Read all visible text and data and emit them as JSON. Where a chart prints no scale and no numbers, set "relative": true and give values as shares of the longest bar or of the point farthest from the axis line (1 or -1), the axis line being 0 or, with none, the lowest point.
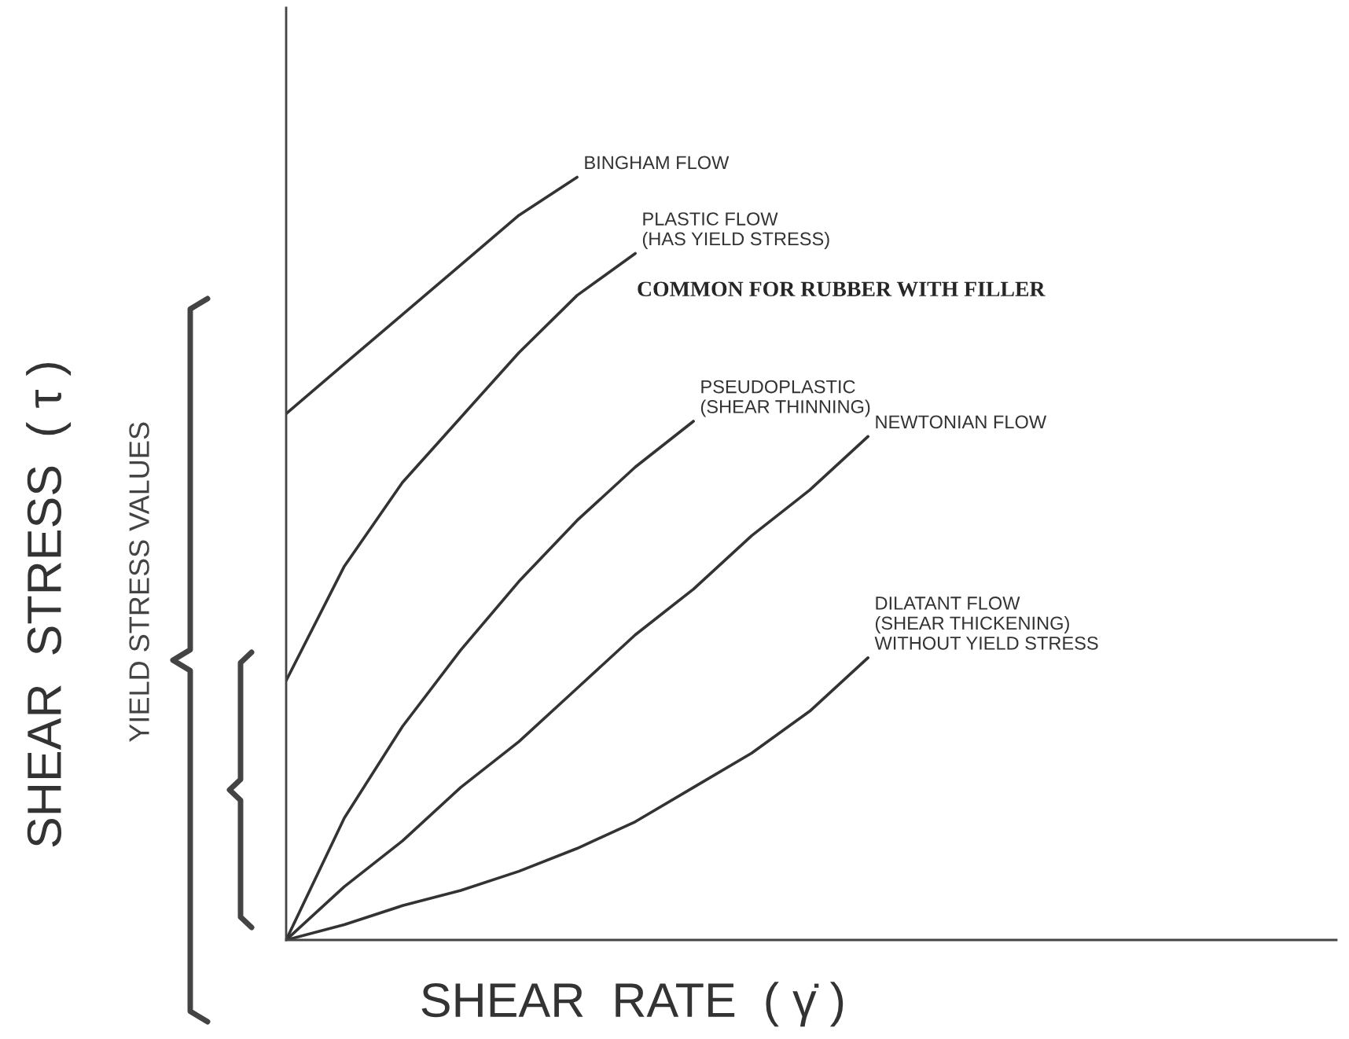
{
  "chart_data": {
    "type": "line",
    "relative": true,
    "legend": false,
    "marker": "none",
    "line_style": "solid",
    "xlabel": "SHEAR  RATE  ( γ̇ )",
    "ylabel": "SHEAR  STRESS  ( τ )",
    "categories": [
      null,
      null,
      null,
      null,
      null,
      null,
      null,
      null,
      null,
      null,
      null
    ],
    "series": [
      {
        "color": "#333333",
        "values": [
          0.69,
          0.755,
          0.82,
          0.885,
          0.95,
          1.0,
          null,
          null,
          null,
          null,
          null
        ]
      },
      {
        "color": "#333333",
        "values": [
          0.34,
          0.49,
          0.6,
          0.685,
          0.77,
          0.845,
          0.9,
          null,
          null,
          null,
          null
        ]
      },
      {
        "color": "#333333",
        "values": [
          0,
          0.16,
          0.28,
          0.38,
          0.47,
          0.55,
          0.62,
          0.68,
          null,
          null,
          null
        ]
      },
      {
        "color": "#333333",
        "values": [
          0,
          0.07,
          0.13,
          0.2,
          0.26,
          0.33,
          0.4,
          0.46,
          0.53,
          0.59,
          0.66
        ]
      },
      {
        "color": "#333333",
        "values": [
          0,
          0.02,
          0.045,
          0.065,
          0.09,
          0.12,
          0.155,
          0.2,
          0.245,
          0.3,
          0.37
        ]
      }
    ],
    "annotations": [
      "BINGHAM FLOW",
      "PLASTIC FLOW\n(HAS YIELD STRESS)",
      "PSEUDOPLASTIC\n(SHEAR THINNING)",
      "NEWTONIAN FLOW",
      "DILATANT FLOW\n(SHEAR THICKENING)\nWITHOUT YIELD STRESS",
      "COMMON FOR RUBBER WITH FILLER",
      "YIELD STRESS VALUES"
    ]
  }
}
